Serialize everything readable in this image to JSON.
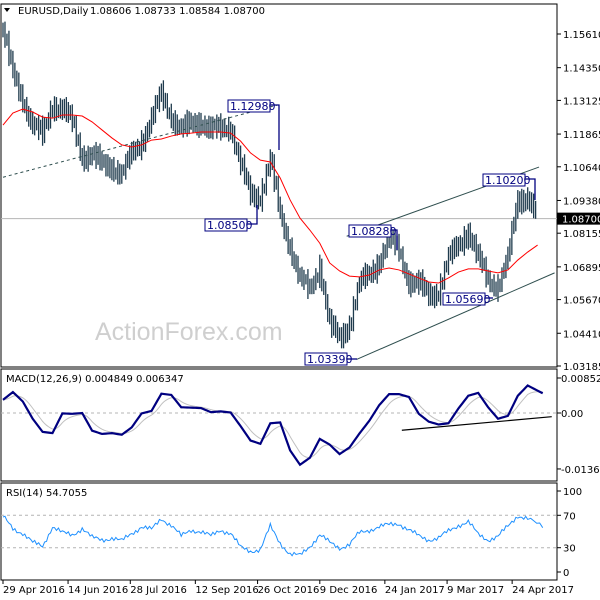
{
  "header": {
    "symbol": "EURUSD,Daily",
    "ohlc": "1.08606 1.08733 1.08584 1.08700"
  },
  "watermark": "ActionForex.com",
  "colors": {
    "bars": "#1f3b4d",
    "sma": "#ff0000",
    "macd": "#000080",
    "signal": "#c0c0c0",
    "rsi": "#1e90ff",
    "annotation": "#000080",
    "trendline": "#2f4f4f"
  },
  "chart_data": [
    {
      "type": "bar",
      "panel": "price",
      "title": "EURUSD,Daily",
      "ylim": [
        1.03185,
        1.1561
      ],
      "y_ticks": [
        "1.15610",
        "1.14350",
        "1.13125",
        "1.11865",
        "1.10640",
        "1.09380",
        "1.08155",
        "1.06895",
        "1.05670",
        "1.04410",
        "1.03185"
      ],
      "current_price": "1.08700",
      "x_ticks": [
        "29 Apr 2016",
        "14 Jun 2016",
        "28 Jul 2016",
        "12 Sep 2016",
        "26 Oct 2016",
        "9 Dec 2016",
        "24 Jan 2017",
        "9 Mar 2017",
        "24 Apr 2017"
      ],
      "x_tick_dates": [
        "2016-04-29",
        "2016-06-14",
        "2016-07-28",
        "2016-09-12",
        "2016-10-26",
        "2016-12-09",
        "2017-01-24",
        "2017-03-09",
        "2017-04-24"
      ],
      "dates": [
        "2016-04-29",
        "2016-05-06",
        "2016-05-13",
        "2016-05-20",
        "2016-05-27",
        "2016-06-03",
        "2016-06-10",
        "2016-06-17",
        "2016-06-24",
        "2016-07-01",
        "2016-07-08",
        "2016-07-15",
        "2016-07-22",
        "2016-07-29",
        "2016-08-05",
        "2016-08-12",
        "2016-08-19",
        "2016-08-26",
        "2016-09-02",
        "2016-09-09",
        "2016-09-16",
        "2016-09-23",
        "2016-09-30",
        "2016-10-07",
        "2016-10-14",
        "2016-10-21",
        "2016-10-28",
        "2016-11-04",
        "2016-11-11",
        "2016-11-18",
        "2016-11-25",
        "2016-12-02",
        "2016-12-09",
        "2016-12-16",
        "2016-12-23",
        "2016-12-30",
        "2017-01-06",
        "2017-01-13",
        "2017-01-20",
        "2017-01-27",
        "2017-02-03",
        "2017-02-10",
        "2017-02-17",
        "2017-02-24",
        "2017-03-03",
        "2017-03-10",
        "2017-03-17",
        "2017-03-24",
        "2017-03-31",
        "2017-04-07",
        "2017-04-14",
        "2017-04-21",
        "2017-04-28",
        "2017-05-05",
        "2017-05-12"
      ],
      "close": [
        1.1576,
        1.141,
        1.1322,
        1.122,
        1.118,
        1.13,
        1.128,
        1.123,
        1.1108,
        1.1108,
        1.1071,
        1.1071,
        1.1033,
        1.1108,
        1.1164,
        1.1239,
        1.1333,
        1.1258,
        1.1202,
        1.122,
        1.1239,
        1.1202,
        1.1202,
        1.122,
        1.1071,
        1.0958,
        1.0958,
        1.1089,
        1.0884,
        1.0771,
        1.064,
        1.0603,
        1.0697,
        1.047,
        1.042,
        1.048,
        1.0622,
        1.0659,
        1.0715,
        1.079,
        1.0752,
        1.064,
        1.0622,
        1.0584,
        1.0603,
        1.0715,
        1.0771,
        1.0827,
        1.072,
        1.064,
        1.0622,
        1.0715,
        1.094,
        1.0958,
        1.087
      ],
      "sma": [
        1.122,
        1.1265,
        1.128,
        1.1269,
        1.125,
        1.1246,
        1.1258,
        1.1258,
        1.1254,
        1.1232,
        1.1202,
        1.1172,
        1.1146,
        1.1138,
        1.1146,
        1.1164,
        1.1168,
        1.1179,
        1.1187,
        1.119,
        1.1194,
        1.1194,
        1.1194,
        1.119,
        1.116,
        1.1116,
        1.1089,
        1.1082,
        1.1022,
        1.094,
        1.0872,
        1.0827,
        1.0778,
        1.0704,
        1.0674,
        1.0655,
        1.0652,
        1.0659,
        1.0678,
        1.0685,
        1.0678,
        1.0663,
        1.0648,
        1.0633,
        1.0629,
        1.0648,
        1.067,
        1.0682,
        1.0682,
        1.0674,
        1.0667,
        1.0678,
        1.0715,
        1.0745,
        1.0771
      ],
      "annotations": [
        {
          "label": "1.12980",
          "price": 1.1298
        },
        {
          "label": "1.08500",
          "price": 1.085
        },
        {
          "label": "1.08280",
          "price": 1.0828
        },
        {
          "label": "1.10200",
          "price": 1.102
        },
        {
          "label": "1.05690",
          "price": 1.0569
        },
        {
          "label": "1.03390",
          "price": 1.0339
        }
      ],
      "trendlines": [
        {
          "style": "dashed",
          "from": [
            "2016-04-29",
            1.1025
          ],
          "to": [
            "2016-11-09",
            1.1295
          ]
        },
        {
          "style": "solid",
          "from": [
            "2016-12-28",
            1.0804
          ],
          "to": [
            "2017-05-13",
            1.1063
          ]
        },
        {
          "style": "solid",
          "from": [
            "2017-01-04",
            1.0343
          ],
          "to": [
            "2017-05-24",
            1.0667
          ]
        }
      ]
    },
    {
      "type": "line",
      "panel": "macd",
      "title": "MACD(12,26,9) 0.004849 0.006347",
      "ylim": [
        -0.013624,
        0.008521
      ],
      "y_ticks": [
        "0.008521",
        "0.00",
        "-0.013624"
      ],
      "values": [
        0.0032,
        0.0051,
        0.0028,
        -0.0014,
        -0.0046,
        -0.0049,
        -0.0001,
        -0.0002,
        0.0,
        -0.0043,
        -0.0051,
        -0.0049,
        -0.0053,
        -0.0035,
        -0.0001,
        0.0005,
        0.0047,
        0.0044,
        0.0014,
        0.0013,
        0.0012,
        0.0002,
        0.0004,
        0.0001,
        -0.0032,
        -0.0067,
        -0.0075,
        -0.0025,
        -0.0023,
        -0.0091,
        -0.0126,
        -0.0109,
        -0.0063,
        -0.0077,
        -0.01,
        -0.0084,
        -0.005,
        -0.0019,
        0.0019,
        0.0046,
        0.0046,
        0.0039,
        -0.0002,
        -0.0021,
        -0.0028,
        -0.0025,
        0.0011,
        0.0042,
        0.0049,
        0.0014,
        -0.0014,
        -0.0007,
        0.0042,
        0.0067,
        0.0048
      ],
      "trendline": {
        "from": [
          "2017-02-05",
          -0.0042
        ],
        "to": [
          "2017-05-22",
          -0.0009
        ]
      }
    },
    {
      "type": "line",
      "panel": "rsi",
      "title": "RSI(14) 54.7055",
      "ylim": [
        0,
        100
      ],
      "y_ticks": [
        "100",
        "70",
        "30",
        "0"
      ],
      "levels": [
        70,
        30
      ],
      "values": [
        68,
        54,
        48,
        36,
        32,
        56,
        48,
        46,
        54,
        42,
        40,
        42,
        38,
        48,
        56,
        52,
        66,
        58,
        44,
        52,
        50,
        44,
        52,
        48,
        30,
        26,
        28,
        56,
        36,
        22,
        20,
        32,
        46,
        36,
        30,
        34,
        48,
        52,
        56,
        58,
        60,
        52,
        44,
        40,
        42,
        50,
        58,
        62,
        46,
        40,
        44,
        56,
        70,
        66,
        54.7
      ]
    }
  ]
}
